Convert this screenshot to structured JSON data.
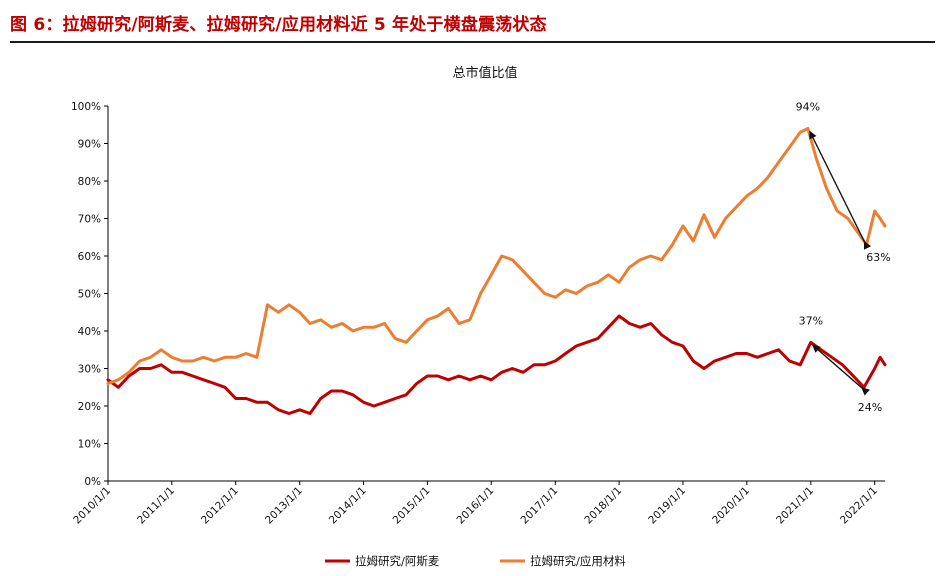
{
  "figure": {
    "title": "图 6：拉姆研究/阿斯麦、拉姆研究/应用材料近 5 年处于横盘震荡状态"
  },
  "colors": {
    "series_red": "#c00000",
    "series_orange": "#ed7d31",
    "axis": "#000000",
    "title_red": "#c00000"
  },
  "chart_data": {
    "type": "line",
    "title": "总市值比值",
    "xlabel": "",
    "ylabel": "",
    "ylim": [
      0,
      100
    ],
    "y_ticks": [
      "0%",
      "10%",
      "20%",
      "30%",
      "40%",
      "50%",
      "60%",
      "70%",
      "80%",
      "90%",
      "100%"
    ],
    "x_ticks": [
      "2010/1/1",
      "2011/1/1",
      "2012/1/1",
      "2013/1/1",
      "2014/1/1",
      "2015/1/1",
      "2016/1/1",
      "2017/1/1",
      "2018/1/1",
      "2019/1/1",
      "2020/1/1",
      "2021/1/1",
      "2022/1/1"
    ],
    "xlim": [
      "2010/1/1",
      "2022/3/1"
    ],
    "grid": false,
    "legend": "bottom",
    "series": [
      {
        "name": "拉姆研究/阿斯麦",
        "color": "#c00000",
        "points": [
          [
            "2010/1/1",
            27
          ],
          [
            "2010/3/1",
            25
          ],
          [
            "2010/5/1",
            28
          ],
          [
            "2010/7/1",
            30
          ],
          [
            "2010/9/1",
            30
          ],
          [
            "2010/11/1",
            31
          ],
          [
            "2011/1/1",
            29
          ],
          [
            "2011/3/1",
            29
          ],
          [
            "2011/5/1",
            28
          ],
          [
            "2011/7/1",
            27
          ],
          [
            "2011/9/1",
            26
          ],
          [
            "2011/11/1",
            25
          ],
          [
            "2012/1/1",
            22
          ],
          [
            "2012/3/1",
            22
          ],
          [
            "2012/5/1",
            21
          ],
          [
            "2012/7/1",
            21
          ],
          [
            "2012/9/1",
            19
          ],
          [
            "2012/11/1",
            18
          ],
          [
            "2013/1/1",
            19
          ],
          [
            "2013/3/1",
            18
          ],
          [
            "2013/5/1",
            22
          ],
          [
            "2013/7/1",
            24
          ],
          [
            "2013/9/1",
            24
          ],
          [
            "2013/11/1",
            23
          ],
          [
            "2014/1/1",
            21
          ],
          [
            "2014/3/1",
            20
          ],
          [
            "2014/5/1",
            21
          ],
          [
            "2014/7/1",
            22
          ],
          [
            "2014/9/1",
            23
          ],
          [
            "2014/11/1",
            26
          ],
          [
            "2015/1/1",
            28
          ],
          [
            "2015/3/1",
            28
          ],
          [
            "2015/5/1",
            27
          ],
          [
            "2015/7/1",
            28
          ],
          [
            "2015/9/1",
            27
          ],
          [
            "2015/11/1",
            28
          ],
          [
            "2016/1/1",
            27
          ],
          [
            "2016/3/1",
            29
          ],
          [
            "2016/5/1",
            30
          ],
          [
            "2016/7/1",
            29
          ],
          [
            "2016/9/1",
            31
          ],
          [
            "2016/11/1",
            31
          ],
          [
            "2017/1/1",
            32
          ],
          [
            "2017/3/1",
            34
          ],
          [
            "2017/5/1",
            36
          ],
          [
            "2017/7/1",
            37
          ],
          [
            "2017/9/1",
            38
          ],
          [
            "2017/11/1",
            41
          ],
          [
            "2018/1/1",
            44
          ],
          [
            "2018/3/1",
            42
          ],
          [
            "2018/5/1",
            41
          ],
          [
            "2018/7/1",
            42
          ],
          [
            "2018/9/1",
            39
          ],
          [
            "2018/11/1",
            37
          ],
          [
            "2019/1/1",
            36
          ],
          [
            "2019/3/1",
            32
          ],
          [
            "2019/5/1",
            30
          ],
          [
            "2019/7/1",
            32
          ],
          [
            "2019/9/1",
            33
          ],
          [
            "2019/11/1",
            34
          ],
          [
            "2020/1/1",
            34
          ],
          [
            "2020/3/1",
            33
          ],
          [
            "2020/5/1",
            34
          ],
          [
            "2020/7/1",
            35
          ],
          [
            "2020/9/1",
            32
          ],
          [
            "2020/11/1",
            31
          ],
          [
            "2021/1/1",
            37
          ],
          [
            "2021/3/1",
            35
          ],
          [
            "2021/5/1",
            33
          ],
          [
            "2021/7/1",
            31
          ],
          [
            "2021/9/1",
            28
          ],
          [
            "2021/11/1",
            25
          ],
          [
            "2022/1/1",
            30
          ],
          [
            "2022/2/1",
            33
          ],
          [
            "2022/3/1",
            31
          ]
        ]
      },
      {
        "name": "拉姆研究/应用材料",
        "color": "#ed7d31",
        "points": [
          [
            "2010/1/1",
            26
          ],
          [
            "2010/3/1",
            27
          ],
          [
            "2010/5/1",
            29
          ],
          [
            "2010/7/1",
            32
          ],
          [
            "2010/9/1",
            33
          ],
          [
            "2010/11/1",
            35
          ],
          [
            "2011/1/1",
            33
          ],
          [
            "2011/3/1",
            32
          ],
          [
            "2011/5/1",
            32
          ],
          [
            "2011/7/1",
            33
          ],
          [
            "2011/9/1",
            32
          ],
          [
            "2011/11/1",
            33
          ],
          [
            "2012/1/1",
            33
          ],
          [
            "2012/3/1",
            34
          ],
          [
            "2012/5/1",
            33
          ],
          [
            "2012/7/1",
            47
          ],
          [
            "2012/9/1",
            45
          ],
          [
            "2012/11/1",
            47
          ],
          [
            "2013/1/1",
            45
          ],
          [
            "2013/3/1",
            42
          ],
          [
            "2013/5/1",
            43
          ],
          [
            "2013/7/1",
            41
          ],
          [
            "2013/9/1",
            42
          ],
          [
            "2013/11/1",
            40
          ],
          [
            "2014/1/1",
            41
          ],
          [
            "2014/3/1",
            41
          ],
          [
            "2014/5/1",
            42
          ],
          [
            "2014/7/1",
            38
          ],
          [
            "2014/9/1",
            37
          ],
          [
            "2014/11/1",
            40
          ],
          [
            "2015/1/1",
            43
          ],
          [
            "2015/3/1",
            44
          ],
          [
            "2015/5/1",
            46
          ],
          [
            "2015/7/1",
            42
          ],
          [
            "2015/9/1",
            43
          ],
          [
            "2015/11/1",
            50
          ],
          [
            "2016/1/1",
            55
          ],
          [
            "2016/3/1",
            60
          ],
          [
            "2016/5/1",
            59
          ],
          [
            "2016/7/1",
            56
          ],
          [
            "2016/9/1",
            53
          ],
          [
            "2016/11/1",
            50
          ],
          [
            "2017/1/1",
            49
          ],
          [
            "2017/3/1",
            51
          ],
          [
            "2017/5/1",
            50
          ],
          [
            "2017/7/1",
            52
          ],
          [
            "2017/9/1",
            53
          ],
          [
            "2017/11/1",
            55
          ],
          [
            "2018/1/1",
            53
          ],
          [
            "2018/3/1",
            57
          ],
          [
            "2018/5/1",
            59
          ],
          [
            "2018/7/1",
            60
          ],
          [
            "2018/9/1",
            59
          ],
          [
            "2018/11/1",
            63
          ],
          [
            "2019/1/1",
            68
          ],
          [
            "2019/3/1",
            64
          ],
          [
            "2019/5/1",
            71
          ],
          [
            "2019/7/1",
            65
          ],
          [
            "2019/9/1",
            70
          ],
          [
            "2019/11/1",
            73
          ],
          [
            "2020/1/1",
            76
          ],
          [
            "2020/3/1",
            78
          ],
          [
            "2020/5/1",
            81
          ],
          [
            "2020/7/1",
            85
          ],
          [
            "2020/9/1",
            89
          ],
          [
            "2020/11/1",
            93
          ],
          [
            "2020/12/15",
            94
          ],
          [
            "2021/2/1",
            86
          ],
          [
            "2021/4/1",
            78
          ],
          [
            "2021/6/1",
            72
          ],
          [
            "2021/8/1",
            70
          ],
          [
            "2021/10/1",
            66
          ],
          [
            "2021/11/15",
            63
          ],
          [
            "2022/1/1",
            72
          ],
          [
            "2022/2/1",
            70
          ],
          [
            "2022/3/1",
            68
          ]
        ]
      }
    ],
    "annotations": [
      {
        "label": "94%",
        "date": "2020/12/15",
        "value": 94
      },
      {
        "label": "63%",
        "date": "2021/11/15",
        "value": 63
      },
      {
        "label": "37%",
        "date": "2021/1/1",
        "value": 37
      },
      {
        "label": "24%",
        "date": "2021/11/1",
        "value": 24
      }
    ]
  }
}
